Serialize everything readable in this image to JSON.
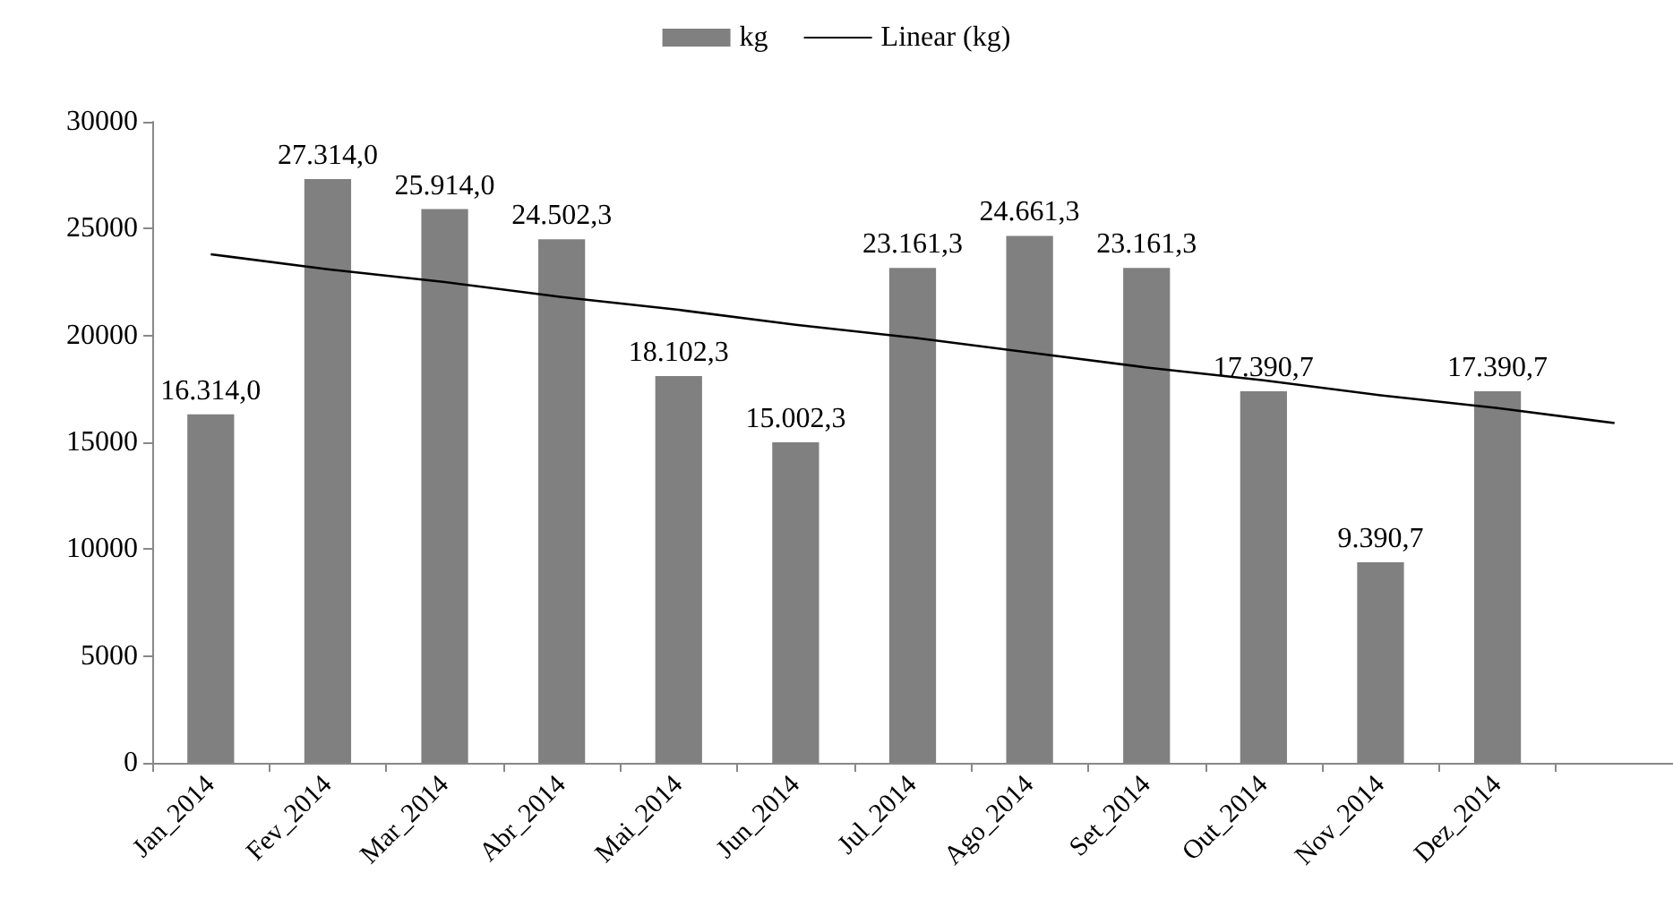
{
  "chart_data": {
    "type": "bar",
    "categories": [
      "Jan_2014",
      "Fev_2014",
      "Mar_2014",
      "Abr_2014",
      "Mai_2014",
      "Jun_2014",
      "Jul_2014",
      "Ago_2014",
      "Set_2014",
      "Out_2014",
      "Nov_2014",
      "Dez_2014",
      null
    ],
    "series": [
      {
        "name": "kg",
        "color": "#808080",
        "values": [
          16314.0,
          27314.0,
          25914.0,
          24502.3,
          18102.3,
          15002.3,
          23161.3,
          24661.3,
          23161.3,
          17390.7,
          9390.7,
          17390.7,
          null
        ],
        "value_labels": [
          "16.314,0",
          "27.314,0",
          "25.914,0",
          "24.502,3",
          "18.102,3",
          "15.002,3",
          "23.161,3",
          "24.661,3",
          "23.161,3",
          "17.390,7",
          "9.390,7",
          "17.390,7",
          null
        ]
      },
      {
        "name": "Linear (kg)",
        "type": "line",
        "color": "#000000",
        "values": [
          23800,
          23100,
          22500,
          21800,
          21200,
          20500,
          19900,
          19200,
          18500,
          17900,
          17200,
          16600,
          15900
        ]
      }
    ],
    "ylim": [
      0,
      30000
    ],
    "yticks": [
      0,
      5000,
      10000,
      15000,
      20000,
      25000,
      30000
    ],
    "grid": false,
    "legend": "top",
    "marker": "none"
  }
}
